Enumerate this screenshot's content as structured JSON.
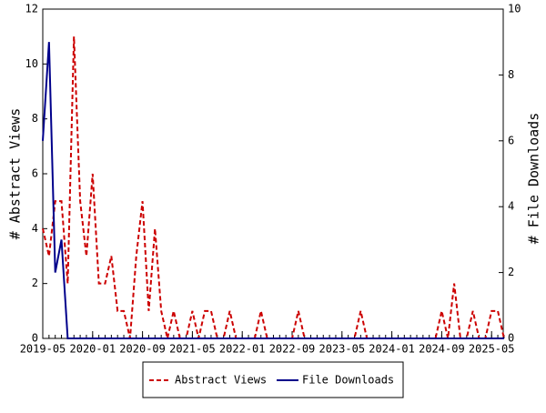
{
  "chart_data": {
    "type": "line",
    "x": [
      "2019-05",
      "2019-06",
      "2019-07",
      "2019-08",
      "2019-09",
      "2019-10",
      "2019-11",
      "2019-12",
      "2020-01",
      "2020-02",
      "2020-03",
      "2020-04",
      "2020-05",
      "2020-06",
      "2020-07",
      "2020-08",
      "2020-09",
      "2020-10",
      "2020-11",
      "2020-12",
      "2021-01",
      "2021-02",
      "2021-03",
      "2021-04",
      "2021-05",
      "2021-06",
      "2021-07",
      "2021-08",
      "2021-09",
      "2021-10",
      "2021-11",
      "2021-12",
      "2022-01",
      "2022-02",
      "2022-03",
      "2022-04",
      "2022-05",
      "2022-06",
      "2022-07",
      "2022-08",
      "2022-09",
      "2022-10",
      "2022-11",
      "2022-12",
      "2023-01",
      "2023-02",
      "2023-03",
      "2023-04",
      "2023-05",
      "2023-06",
      "2023-07",
      "2023-08",
      "2023-09",
      "2023-10",
      "2023-11",
      "2023-12",
      "2024-01",
      "2024-02",
      "2024-03",
      "2024-04",
      "2024-05",
      "2024-06",
      "2024-07",
      "2024-08",
      "2024-09",
      "2024-10",
      "2024-11",
      "2024-12",
      "2025-01",
      "2025-02",
      "2025-03",
      "2025-04",
      "2025-05",
      "2025-06",
      "2025-07"
    ],
    "xticks": [
      "2019-05",
      "2020-01",
      "2020-09",
      "2021-05",
      "2022-01",
      "2022-09",
      "2023-05",
      "2024-01",
      "2024-09",
      "2025-05"
    ],
    "ylabel": "# Abstract Views",
    "y2label": "# File Downloads",
    "ylim": [
      0,
      12
    ],
    "yticks": [
      0,
      2,
      4,
      6,
      8,
      10,
      12
    ],
    "y2lim": [
      0,
      10
    ],
    "y2ticks": [
      0,
      2,
      4,
      6,
      8,
      10
    ],
    "series": [
      {
        "name": "Abstract Views",
        "color": "#cc0000",
        "dash": true,
        "values": [
          4,
          3,
          5,
          5,
          2,
          11,
          5,
          3,
          6,
          2,
          2,
          3,
          1,
          1,
          0,
          3,
          5,
          1,
          4,
          1,
          0,
          1,
          0,
          0,
          1,
          0,
          1,
          1,
          0,
          0,
          1,
          0,
          0,
          0,
          0,
          1,
          0,
          0,
          0,
          0,
          0,
          1,
          0,
          0,
          0,
          0,
          0,
          0,
          0,
          0,
          0,
          1,
          0,
          0,
          0,
          0,
          0,
          0,
          0,
          0,
          0,
          0,
          0,
          0,
          1,
          0,
          2,
          0,
          0,
          1,
          0,
          0,
          1,
          1,
          0
        ]
      },
      {
        "name": "File Downloads",
        "color": "#00008b",
        "axis": "y2",
        "values": [
          6,
          9,
          2,
          3,
          0,
          0,
          0,
          0,
          0,
          0,
          0,
          0,
          0,
          0,
          0,
          0,
          0,
          0,
          0,
          0,
          0,
          0,
          0,
          0,
          0,
          0,
          0,
          0,
          0,
          0,
          0,
          0,
          0,
          0,
          0,
          0,
          0,
          0,
          0,
          0,
          0,
          0,
          0,
          0,
          0,
          0,
          0,
          0,
          0,
          0,
          0,
          0,
          0,
          0,
          0,
          0,
          0,
          0,
          0,
          0,
          0,
          0,
          0,
          0,
          0,
          0,
          0,
          0,
          0,
          0,
          0,
          0,
          0,
          0,
          0
        ]
      }
    ]
  }
}
